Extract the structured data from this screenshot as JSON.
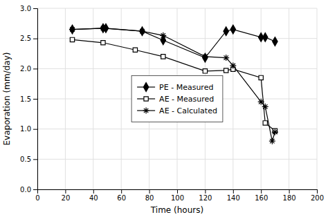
{
  "chart_data": {
    "type": "line",
    "xlabel": "Time (hours)",
    "ylabel": "Evaporation (mm/day)",
    "xlim": [
      0,
      200
    ],
    "ylim": [
      0.0,
      3.0
    ],
    "xticks": [
      0,
      20,
      40,
      60,
      80,
      100,
      120,
      140,
      160,
      180,
      200
    ],
    "yticks": [
      {
        "value": 0.0,
        "label": "0.0"
      },
      0.5,
      {
        "value": 1.0,
        "label": "1.0"
      },
      1.5,
      {
        "value": 2.0,
        "label": "2.0"
      },
      2.5,
      {
        "value": 3.0,
        "label": "3.0"
      }
    ],
    "grid": true,
    "legend": "center",
    "series": [
      {
        "name": "PE - Measured",
        "color": "#000000",
        "marker": "diamond",
        "x": [
          25,
          47,
          49,
          75,
          90,
          120,
          135,
          140,
          160,
          163,
          170
        ],
        "values": [
          2.65,
          2.67,
          2.67,
          2.62,
          2.47,
          2.18,
          2.62,
          2.65,
          2.52,
          2.52,
          2.45
        ]
      },
      {
        "name": "AE - Measured",
        "color": "#000000",
        "marker": "square-open",
        "x": [
          25,
          47,
          70,
          90,
          120,
          135,
          140,
          160,
          163,
          170
        ],
        "values": [
          2.48,
          2.43,
          2.31,
          2.2,
          1.96,
          1.97,
          1.99,
          1.85,
          1.1,
          0.97
        ]
      },
      {
        "name": "AE - Calculated",
        "color": "#000000",
        "marker": "asterisk",
        "x": [
          25,
          47,
          75,
          90,
          120,
          135,
          140,
          160,
          163,
          168,
          170
        ],
        "values": [
          2.65,
          2.67,
          2.62,
          2.55,
          2.2,
          2.18,
          2.05,
          1.45,
          1.37,
          0.8,
          0.95
        ]
      }
    ]
  }
}
